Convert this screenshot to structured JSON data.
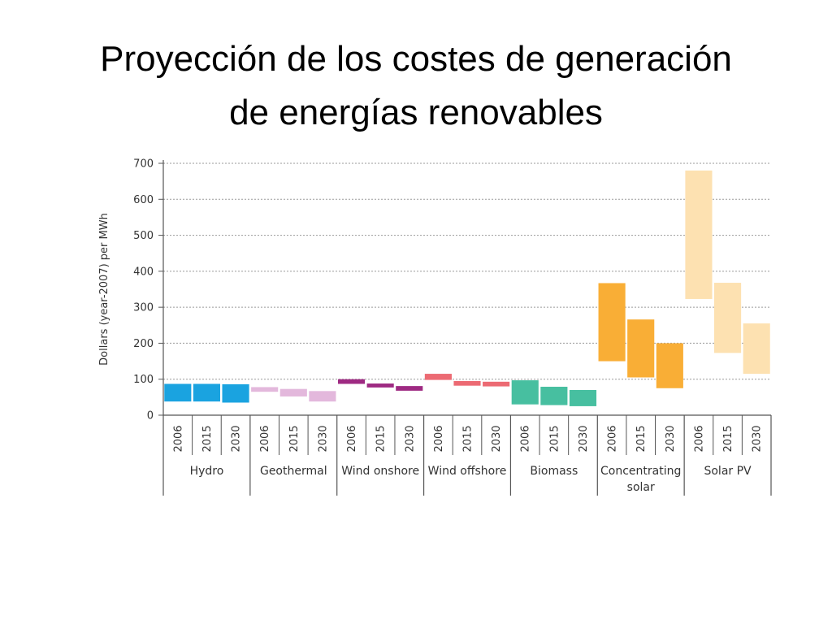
{
  "slide": {
    "title_line1": "Proyección de los costes de generación",
    "title_line2": "de energías renovables"
  },
  "chart_data": {
    "type": "floating-bar",
    "ylabel": "Dollars (year-2007) per MWh",
    "ylim": [
      0,
      700
    ],
    "yticks": [
      0,
      100,
      200,
      300,
      400,
      500,
      600,
      700
    ],
    "grid": true,
    "years": [
      "2006",
      "2015",
      "2030"
    ],
    "groups": [
      {
        "label": [
          "Hydro"
        ],
        "color": "#1aa3e0",
        "ranges": [
          [
            38,
            87
          ],
          [
            38,
            87
          ],
          [
            35,
            86
          ]
        ]
      },
      {
        "label": [
          "Geothermal"
        ],
        "color": "#e3b8dc",
        "ranges": [
          [
            65,
            78
          ],
          [
            52,
            73
          ],
          [
            38,
            67
          ]
        ]
      },
      {
        "label": [
          "Wind onshore"
        ],
        "color": "#9e2a82",
        "ranges": [
          [
            87,
            100
          ],
          [
            77,
            88
          ],
          [
            68,
            81
          ]
        ]
      },
      {
        "label": [
          "Wind offshore"
        ],
        "color": "#ec6a73",
        "ranges": [
          [
            98,
            115
          ],
          [
            82,
            95
          ],
          [
            80,
            93
          ]
        ]
      },
      {
        "label": [
          "Biomass"
        ],
        "color": "#47bfa0",
        "ranges": [
          [
            30,
            97
          ],
          [
            28,
            79
          ],
          [
            25,
            70
          ]
        ]
      },
      {
        "label": [
          "Concentrating",
          "solar"
        ],
        "color": "#f9ae36",
        "ranges": [
          [
            150,
            367
          ],
          [
            105,
            266
          ],
          [
            75,
            200
          ]
        ]
      },
      {
        "label": [
          "Solar PV"
        ],
        "color": "#fde1b1",
        "ranges": [
          [
            323,
            680
          ],
          [
            173,
            368
          ],
          [
            115,
            255
          ]
        ]
      }
    ]
  }
}
